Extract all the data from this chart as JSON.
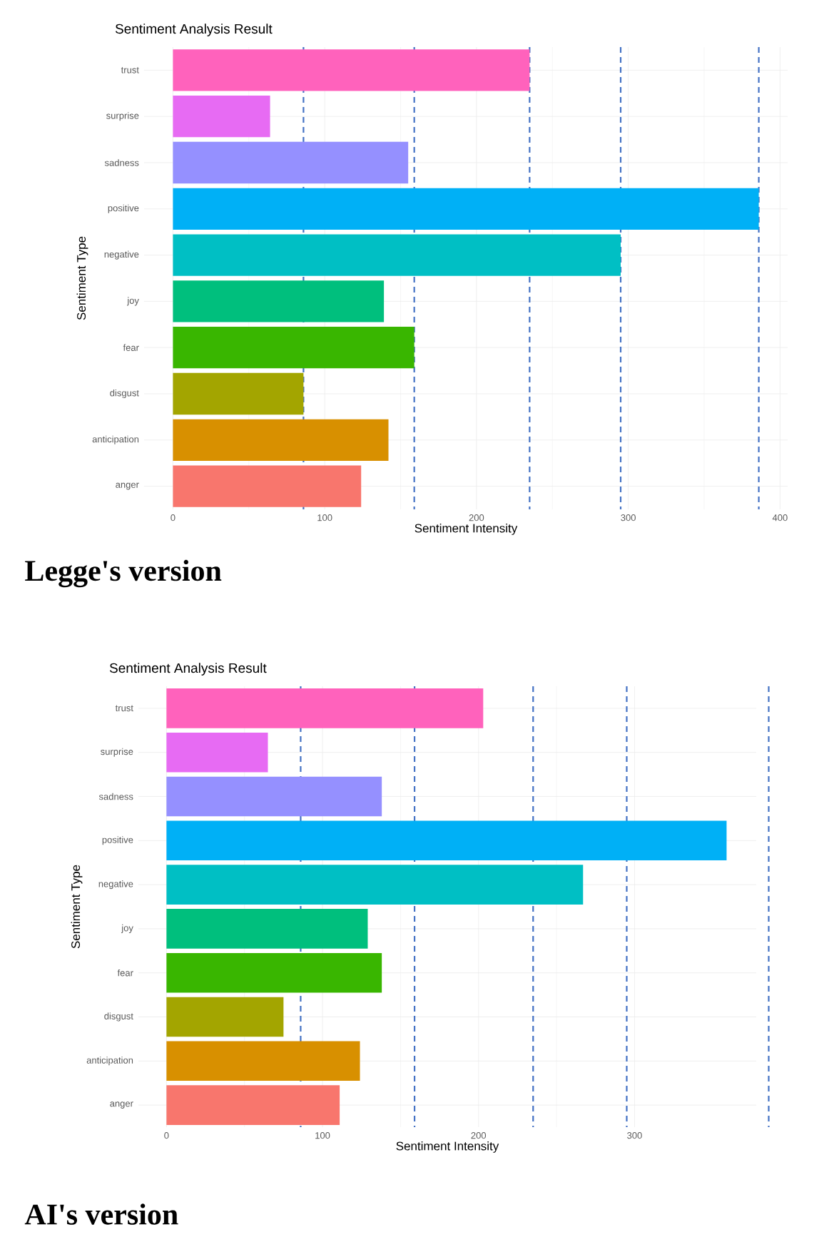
{
  "chart_data": [
    {
      "type": "bar",
      "orientation": "horizontal",
      "title": "Sentiment Analysis Result",
      "xlabel": "Sentiment Intensity",
      "ylabel": "Sentiment Type",
      "categories": [
        "trust",
        "surprise",
        "sadness",
        "positive",
        "negative",
        "joy",
        "fear",
        "disgust",
        "anticipation",
        "anger"
      ],
      "values": [
        235,
        64,
        155,
        386,
        295,
        139,
        159,
        86,
        142,
        124
      ],
      "colors": [
        "#ff62bc",
        "#e76bf3",
        "#9590ff",
        "#00b0f6",
        "#00bfc4",
        "#00bf7d",
        "#39b600",
        "#a3a500",
        "#d89000",
        "#f8766d"
      ],
      "xlim": [
        -19,
        405
      ],
      "xticks": [
        0,
        100,
        200,
        300,
        400
      ],
      "grid": true,
      "ref_lines": [
        {
          "axis": "x",
          "value": 235,
          "color": "#4472c4",
          "line_style": "dashed"
        },
        {
          "axis": "x",
          "value": 386,
          "color": "#4472c4",
          "line_style": "dashed"
        },
        {
          "axis": "x",
          "value": 295,
          "color": "#4472c4",
          "line_style": "dashed"
        },
        {
          "axis": "x",
          "value": 159,
          "color": "#4472c4",
          "line_style": "dashed"
        },
        {
          "axis": "x",
          "value": 86,
          "color": "#4472c4",
          "line_style": "dashed"
        }
      ],
      "annotations": [
        "Legge's version"
      ]
    },
    {
      "type": "bar",
      "orientation": "horizontal",
      "title": "Sentiment Analysis Result",
      "xlabel": "Sentiment Intensity",
      "ylabel": "Sentiment Type",
      "categories": [
        "trust",
        "surprise",
        "sadness",
        "positive",
        "negative",
        "joy",
        "fear",
        "disgust",
        "anticipation",
        "anger"
      ],
      "values": [
        203,
        65,
        138,
        359,
        267,
        129,
        138,
        75,
        124,
        111
      ],
      "colors": [
        "#ff62bc",
        "#e76bf3",
        "#9590ff",
        "#00b0f6",
        "#00bfc4",
        "#00bf7d",
        "#39b600",
        "#a3a500",
        "#d89000",
        "#f8766d"
      ],
      "xlim": [
        -18,
        378
      ],
      "xticks": [
        0,
        100,
        200,
        300
      ],
      "grid": true,
      "ref_lines": [
        {
          "axis": "x",
          "value": 235,
          "color": "#4472c4",
          "line_style": "dashed"
        },
        {
          "axis": "x",
          "value": 386,
          "color": "#4472c4",
          "line_style": "dashed"
        },
        {
          "axis": "x",
          "value": 295,
          "color": "#4472c4",
          "line_style": "dashed"
        },
        {
          "axis": "x",
          "value": 159,
          "color": "#4472c4",
          "line_style": "dashed"
        },
        {
          "axis": "x",
          "value": 86,
          "color": "#4472c4",
          "line_style": "dashed"
        }
      ],
      "annotations": [
        "AI's version"
      ]
    }
  ]
}
